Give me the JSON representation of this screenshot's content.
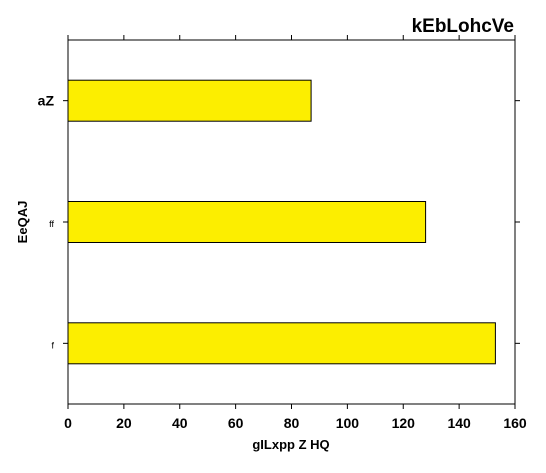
{
  "chart_data": {
    "type": "bar",
    "orientation": "horizontal",
    "title": "kEbLohcVe",
    "xlabel": "gILxpp Z HQ",
    "ylabel": "EeQAJ",
    "categories": [
      "aZ",
      "ff",
      "f"
    ],
    "values": [
      87,
      128,
      153
    ],
    "xlim": [
      0,
      160
    ],
    "xticks": [
      0,
      20,
      40,
      60,
      80,
      100,
      120,
      140,
      160
    ],
    "bar_color": "#fcee00",
    "bar_edge_color": "#000000",
    "grid": false,
    "legend": "none"
  }
}
